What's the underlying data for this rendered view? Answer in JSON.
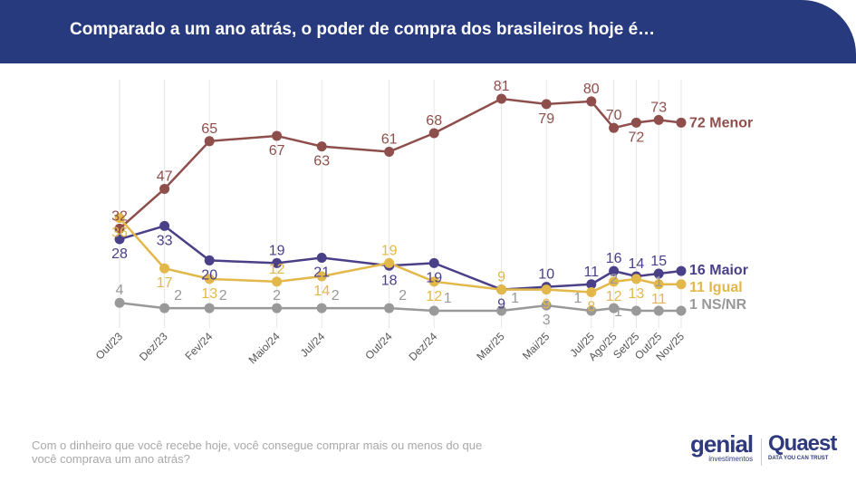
{
  "header": {
    "title": "Comparado a um ano atrás, o poder de compra dos brasileiros hoje é…"
  },
  "footer": {
    "question": "Com o dinheiro que você recebe hoje, você consegue comprar mais ou menos do que você comprava um ano atrás?"
  },
  "logos": {
    "genial": "genial",
    "genial_sub": "investimentos",
    "quaest": "Quaest",
    "quaest_sub": "DATA YOU CAN TRUST"
  },
  "chart_data": {
    "type": "line",
    "title": "Comparado a um ano atrás, o poder de compra dos brasileiros hoje é…",
    "categories": [
      "Out/23",
      "Dez/23",
      "Fev/24",
      "Maio/24",
      "Jul/24",
      "Out/24",
      "Dez/24",
      "Mar/25",
      "Mai/25",
      "Jul/25",
      "Ago/25",
      "Set/25",
      "Out/25",
      "Nov/25"
    ],
    "month_index": [
      0,
      2,
      4,
      7,
      9,
      12,
      14,
      17,
      19,
      21,
      22,
      23,
      24,
      25
    ],
    "ylim": [
      0,
      85
    ],
    "grid": "vertical",
    "series": [
      {
        "name": "Menor",
        "end_label": "72 Menor",
        "color": "#8e4f4c",
        "values": [
          32,
          47,
          65,
          67,
          63,
          61,
          68,
          81,
          79,
          80,
          70,
          72,
          73,
          72
        ]
      },
      {
        "name": "Maior",
        "end_label": "16 Maior",
        "color": "#4a4088",
        "values": [
          28,
          33,
          20,
          19,
          21,
          18,
          19,
          9,
          10,
          11,
          16,
          14,
          15,
          16
        ]
      },
      {
        "name": "Igual",
        "end_label": "11 Igual",
        "color": "#e3b84a",
        "values": [
          36,
          17,
          13,
          12,
          14,
          19,
          12,
          9,
          9,
          8,
          12,
          13,
          11,
          11
        ]
      },
      {
        "name": "NS/NR",
        "end_label": "1 NS/NR",
        "color": "#999999",
        "values": [
          4,
          2,
          2,
          2,
          2,
          2,
          1,
          1,
          3,
          1,
          2,
          1,
          1,
          1
        ]
      }
    ]
  }
}
